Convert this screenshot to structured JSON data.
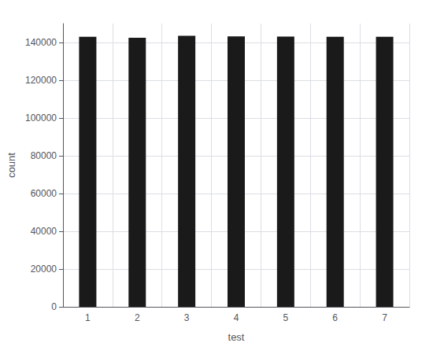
{
  "chart_data": {
    "type": "bar",
    "xlabel": "test",
    "ylabel": "count",
    "categories": [
      1,
      2,
      3,
      4,
      5,
      6,
      7
    ],
    "values": [
      143000,
      142500,
      143500,
      143200,
      143100,
      143000,
      143000
    ],
    "color": "#1a1a1a",
    "ylim": [
      0,
      150000
    ],
    "yticks": [
      0,
      20000,
      40000,
      60000,
      80000,
      100000,
      120000,
      140000
    ],
    "grid": true
  }
}
